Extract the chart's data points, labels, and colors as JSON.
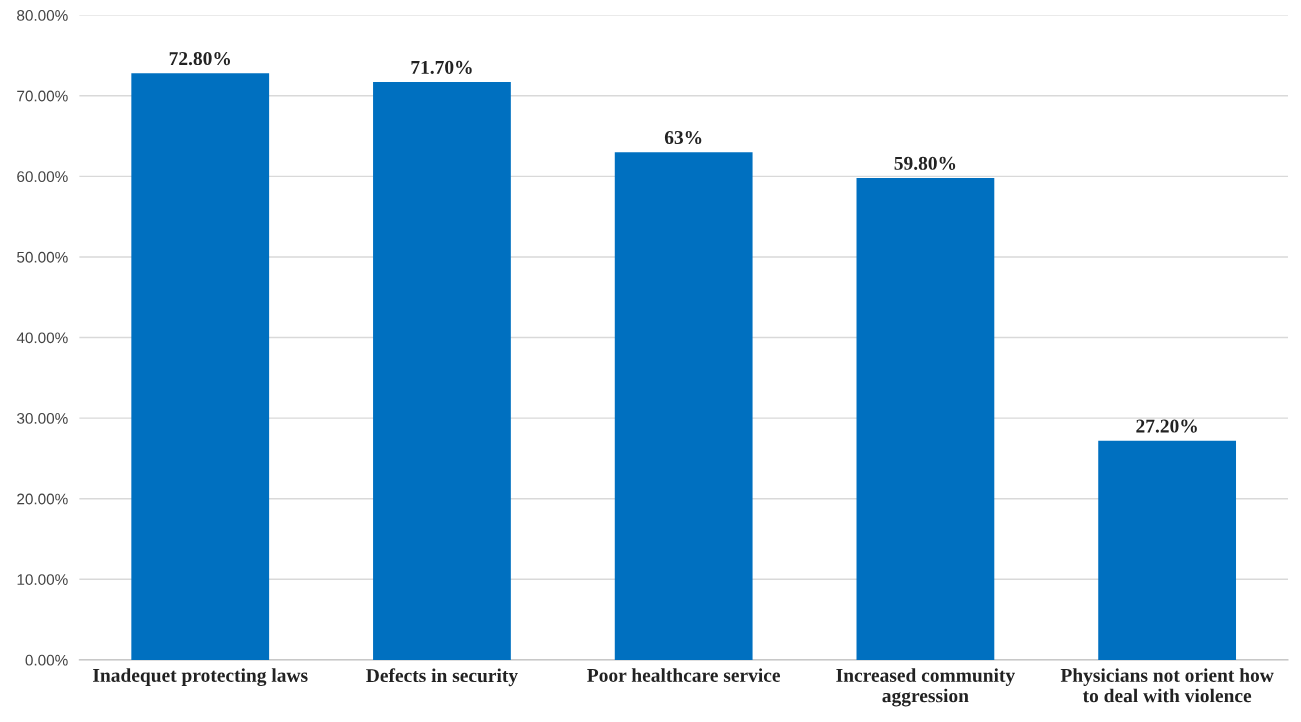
{
  "chart_data": {
    "type": "bar",
    "categories": [
      "Inadequet protecting laws",
      "Defects in security",
      "Poor healthcare service",
      "Increased community\naggression",
      "Physicians not orient how\nto deal with violence"
    ],
    "values": [
      72.8,
      71.7,
      63,
      59.8,
      27.2
    ],
    "value_labels": [
      "72.80%",
      "71.70%",
      "63%",
      "59.80%",
      "27.20%"
    ],
    "color": "#0070c0",
    "ylim": [
      0,
      80
    ],
    "yticks": [
      {
        "value": 0,
        "label": "0.00%"
      },
      {
        "value": 10,
        "label": "10.00%"
      },
      {
        "value": 20,
        "label": "20.00%"
      },
      {
        "value": 30,
        "label": "30.00%"
      },
      {
        "value": 40,
        "label": "40.00%"
      },
      {
        "value": 50,
        "label": "50.00%"
      },
      {
        "value": 60,
        "label": "60.00%"
      },
      {
        "value": 70,
        "label": "70.00%"
      },
      {
        "value": 80,
        "label": "80.00%"
      }
    ],
    "grid": "y"
  }
}
